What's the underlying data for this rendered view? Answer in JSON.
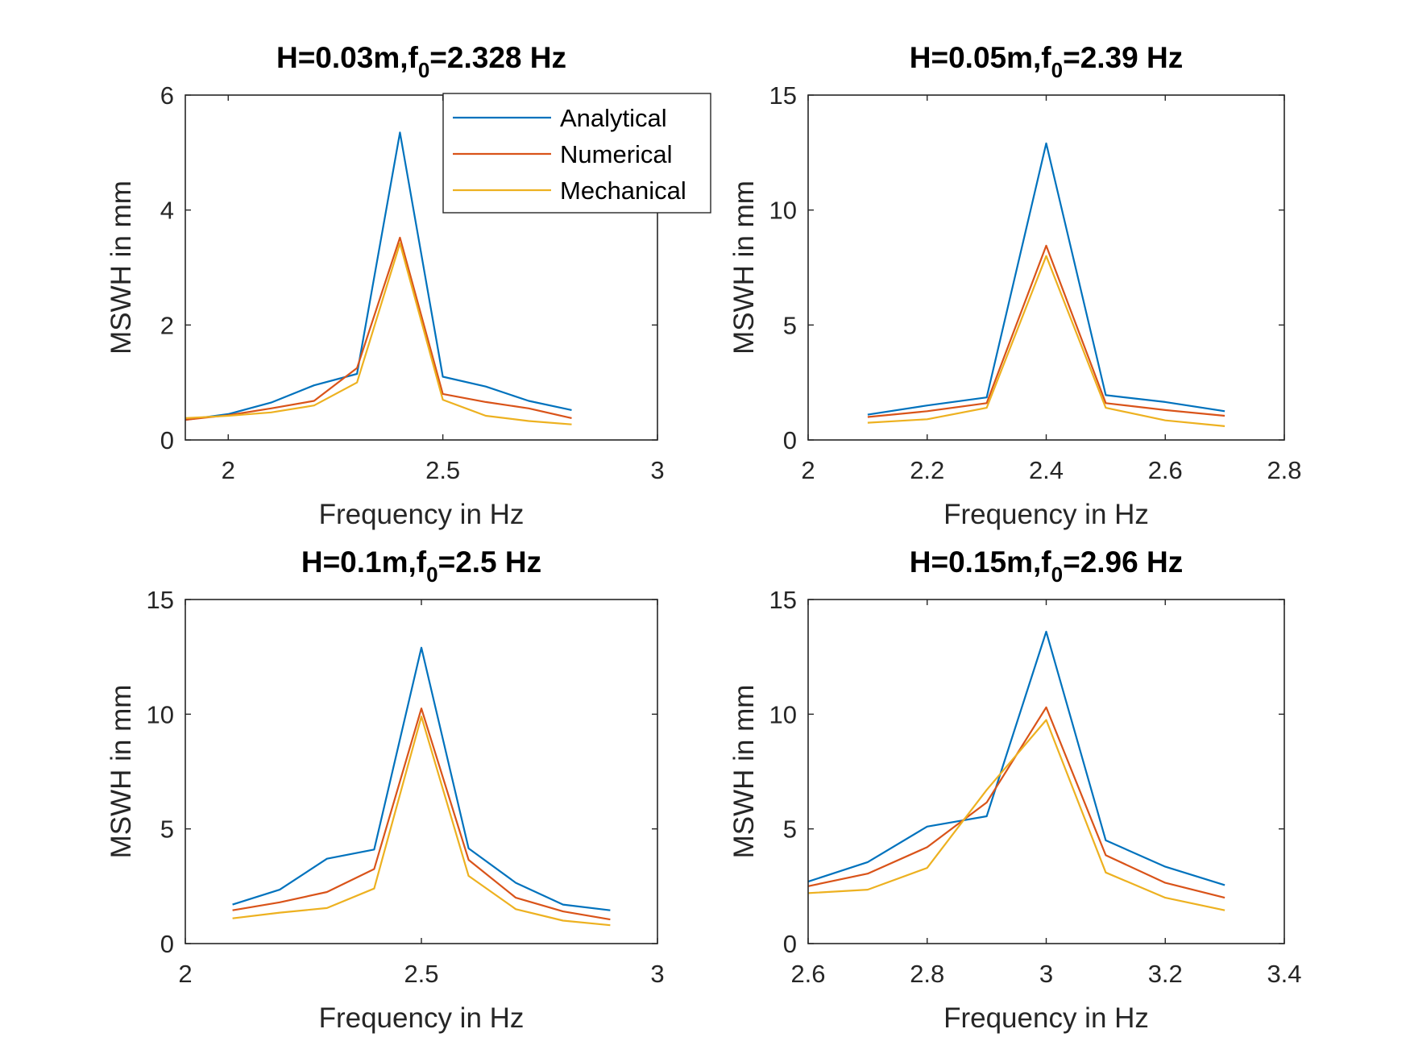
{
  "legend": {
    "entries": [
      {
        "name": "Analytical",
        "color": "#0072BD"
      },
      {
        "name": "Numerical",
        "color": "#D95319"
      },
      {
        "name": "Mechanical",
        "color": "#EDB120"
      }
    ],
    "placement": "top-right of first subplot"
  },
  "chart_data": [
    {
      "type": "line",
      "title": {
        "main": "H=0.03m,f",
        "sub": "0",
        "rest": "=2.328 Hz"
      },
      "xlabel": "Frequency in Hz",
      "ylabel": "MSWH in mm",
      "xlim": [
        1.9,
        3.0
      ],
      "ylim": [
        0,
        6
      ],
      "xticks": [
        {
          "v": 2,
          "label": "2"
        },
        {
          "v": 2.5,
          "label": "2.5"
        },
        {
          "v": 3,
          "label": "3"
        }
      ],
      "yticks": [
        {
          "v": 0,
          "label": "0"
        },
        {
          "v": 2,
          "label": "2"
        },
        {
          "v": 4,
          "label": "4"
        },
        {
          "v": 6,
          "label": "6"
        }
      ],
      "grid": false,
      "has_legend": true,
      "series": [
        {
          "name": "Analytical",
          "x": [
            1.9,
            2.0,
            2.1,
            2.2,
            2.3,
            2.4,
            2.5,
            2.6,
            2.7,
            2.8
          ],
          "y": [
            0.35,
            0.45,
            0.65,
            0.95,
            1.15,
            5.35,
            1.1,
            0.93,
            0.68,
            0.52
          ]
        },
        {
          "name": "Numerical",
          "x": [
            1.9,
            2.0,
            2.1,
            2.2,
            2.3,
            2.4,
            2.5,
            2.6,
            2.7,
            2.8
          ],
          "y": [
            0.35,
            0.43,
            0.55,
            0.68,
            1.25,
            3.52,
            0.8,
            0.66,
            0.55,
            0.38
          ]
        },
        {
          "name": "Mechanical",
          "x": [
            1.9,
            2.0,
            2.1,
            2.2,
            2.3,
            2.4,
            2.5,
            2.6,
            2.7,
            2.8
          ],
          "y": [
            0.38,
            0.42,
            0.48,
            0.6,
            1.0,
            3.42,
            0.7,
            0.42,
            0.33,
            0.27
          ]
        }
      ]
    },
    {
      "type": "line",
      "title": {
        "main": "H=0.05m,f",
        "sub": "0",
        "rest": "=2.39 Hz"
      },
      "xlabel": "Frequency in Hz",
      "ylabel": "MSWH in mm",
      "xlim": [
        2.0,
        2.8
      ],
      "ylim": [
        0,
        15
      ],
      "xticks": [
        {
          "v": 2,
          "label": "2"
        },
        {
          "v": 2.2,
          "label": "2.2"
        },
        {
          "v": 2.4,
          "label": "2.4"
        },
        {
          "v": 2.6,
          "label": "2.6"
        },
        {
          "v": 2.8,
          "label": "2.8"
        }
      ],
      "yticks": [
        {
          "v": 0,
          "label": "0"
        },
        {
          "v": 5,
          "label": "5"
        },
        {
          "v": 10,
          "label": "10"
        },
        {
          "v": 15,
          "label": "15"
        }
      ],
      "grid": false,
      "has_legend": false,
      "series": [
        {
          "name": "Analytical",
          "x": [
            2.1,
            2.2,
            2.3,
            2.4,
            2.5,
            2.6,
            2.7
          ],
          "y": [
            1.1,
            1.5,
            1.85,
            12.9,
            1.95,
            1.65,
            1.25
          ]
        },
        {
          "name": "Numerical",
          "x": [
            2.1,
            2.2,
            2.3,
            2.4,
            2.5,
            2.6,
            2.7
          ],
          "y": [
            1.0,
            1.25,
            1.6,
            8.45,
            1.6,
            1.3,
            1.05
          ]
        },
        {
          "name": "Mechanical",
          "x": [
            2.1,
            2.2,
            2.3,
            2.4,
            2.5,
            2.6,
            2.7
          ],
          "y": [
            0.75,
            0.9,
            1.4,
            8.0,
            1.4,
            0.85,
            0.6
          ]
        }
      ]
    },
    {
      "type": "line",
      "title": {
        "main": "H=0.1m,f",
        "sub": "0",
        "rest": "=2.5 Hz"
      },
      "xlabel": "Frequency in Hz",
      "ylabel": "MSWH in mm",
      "xlim": [
        2.0,
        3.0
      ],
      "ylim": [
        0,
        15
      ],
      "xticks": [
        {
          "v": 2,
          "label": "2"
        },
        {
          "v": 2.5,
          "label": "2.5"
        },
        {
          "v": 3,
          "label": "3"
        }
      ],
      "yticks": [
        {
          "v": 0,
          "label": "0"
        },
        {
          "v": 5,
          "label": "5"
        },
        {
          "v": 10,
          "label": "10"
        },
        {
          "v": 15,
          "label": "15"
        }
      ],
      "grid": false,
      "has_legend": false,
      "series": [
        {
          "name": "Analytical",
          "x": [
            2.1,
            2.2,
            2.3,
            2.4,
            2.5,
            2.6,
            2.7,
            2.8,
            2.9
          ],
          "y": [
            1.7,
            2.35,
            3.7,
            4.1,
            12.9,
            4.15,
            2.65,
            1.7,
            1.45
          ]
        },
        {
          "name": "Numerical",
          "x": [
            2.1,
            2.2,
            2.3,
            2.4,
            2.5,
            2.6,
            2.7,
            2.8,
            2.9
          ],
          "y": [
            1.45,
            1.8,
            2.25,
            3.25,
            10.25,
            3.65,
            2.0,
            1.4,
            1.05
          ]
        },
        {
          "name": "Mechanical",
          "x": [
            2.1,
            2.2,
            2.3,
            2.4,
            2.5,
            2.6,
            2.7,
            2.8,
            2.9
          ],
          "y": [
            1.1,
            1.35,
            1.55,
            2.4,
            9.9,
            2.95,
            1.5,
            1.0,
            0.8
          ]
        }
      ]
    },
    {
      "type": "line",
      "title": {
        "main": "H=0.15m,f",
        "sub": "0",
        "rest": "=2.96 Hz"
      },
      "xlabel": "Frequency in Hz",
      "ylabel": "MSWH in mm",
      "xlim": [
        2.6,
        3.4
      ],
      "ylim": [
        0,
        15
      ],
      "xticks": [
        {
          "v": 2.6,
          "label": "2.6"
        },
        {
          "v": 2.8,
          "label": "2.8"
        },
        {
          "v": 3,
          "label": "3"
        },
        {
          "v": 3.2,
          "label": "3.2"
        },
        {
          "v": 3.4,
          "label": "3.4"
        }
      ],
      "yticks": [
        {
          "v": 0,
          "label": "0"
        },
        {
          "v": 5,
          "label": "5"
        },
        {
          "v": 10,
          "label": "10"
        },
        {
          "v": 15,
          "label": "15"
        }
      ],
      "grid": false,
      "has_legend": false,
      "series": [
        {
          "name": "Analytical",
          "x": [
            2.6,
            2.7,
            2.8,
            2.9,
            3.0,
            3.1,
            3.2,
            3.3
          ],
          "y": [
            2.7,
            3.55,
            5.1,
            5.55,
            13.6,
            4.5,
            3.35,
            2.55
          ]
        },
        {
          "name": "Numerical",
          "x": [
            2.6,
            2.7,
            2.8,
            2.9,
            3.0,
            3.1,
            3.2,
            3.3
          ],
          "y": [
            2.5,
            3.05,
            4.2,
            6.15,
            10.3,
            3.85,
            2.65,
            2.0
          ]
        },
        {
          "name": "Mechanical",
          "x": [
            2.6,
            2.7,
            2.8,
            2.9,
            3.0,
            3.1,
            3.2,
            3.3
          ],
          "y": [
            2.2,
            2.35,
            3.3,
            6.7,
            9.75,
            3.1,
            2.0,
            1.45
          ]
        }
      ]
    }
  ]
}
